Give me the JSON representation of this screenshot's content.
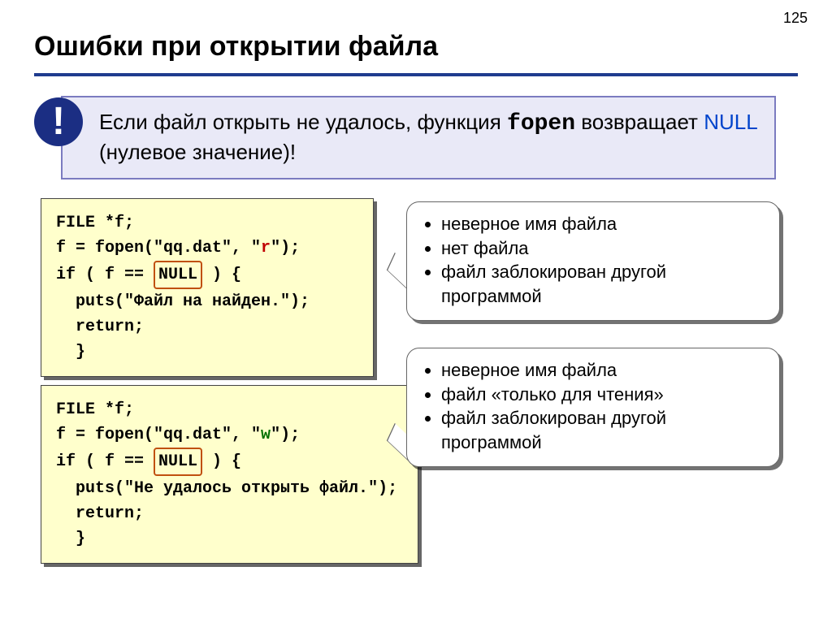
{
  "page_number": "125",
  "title": "Ошибки при открытии файла",
  "warn_badge": "!",
  "warn_part1": "Если файл открыть не удалось, функция ",
  "warn_code": "fopen",
  "warn_part2": " возвращает ",
  "warn_null": "NULL",
  "warn_part3": " (нулевое значение)!",
  "code1": {
    "l1": "FILE *f;",
    "l2a": "f = fopen(\"qq.dat\", \"",
    "l2mode": "r",
    "l2b": "\");",
    "l3a": "if ( f == ",
    "l3null": "NULL",
    "l3b": " ) {",
    "l4": "  puts(\"Файл на найден.\");",
    "l5": "  return;",
    "l6": "  }"
  },
  "code2": {
    "l1": "FILE *f;",
    "l2a": "f = fopen(\"qq.dat\", \"",
    "l2mode": "w",
    "l2b": "\");",
    "l3a": "if ( f == ",
    "l3null": "NULL",
    "l3b": " ) {",
    "l4": "  puts(\"Не удалось открыть файл.\");",
    "l5": "  return;",
    "l6": "  }"
  },
  "callout1": {
    "i1": "неверное имя файла",
    "i2": "нет файла",
    "i3": "файл заблокирован другой программой"
  },
  "callout2": {
    "i1": "неверное имя файла",
    "i2": "файл «только для чтения»",
    "i3": "файл заблокирован другой программой"
  },
  "colors": {
    "accent": "#1b2e83",
    "underline": "#1f3b8e",
    "warn_bg": "#e9e9f7",
    "warn_border": "#7b7bc0",
    "code_bg": "#ffffcc",
    "null_border": "#c05010",
    "r_color": "#c00000",
    "w_color": "#007000",
    "null_text": "#0044cc",
    "shadow": "rgba(0,0,0,0.6)"
  }
}
